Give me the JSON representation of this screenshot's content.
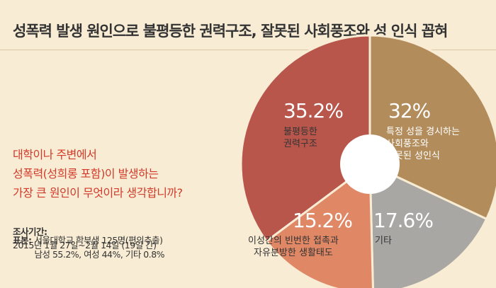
{
  "chart_data": {
    "type": "pie",
    "title": "성폭력 발생 원인으로 불평등한 권력구조, 잘못된 사회풍조와 성 인식 꼽혀",
    "question": "대학이나 주변에서\n성폭력(성희롱 포함)이 발생하는\n가장 큰 원인이 무엇이라 생각합니까?",
    "survey_period_label": "조사기간:",
    "survey_period": "2015년 1월 27일~2월 14일 (19일 간)",
    "sample_label": "표본:",
    "sample": "서울대학교 학부생 125명(편의추출)\n남성 55.2%, 여성 44%, 기타 0.8%",
    "categories": [
      "특정 성을 경시하는\n사회풍조와\n잘못된 성인식",
      "기타",
      "이성간의 빈번한 접촉과\n자유분방한 생활태도",
      "불평등한\n권력구조"
    ],
    "values": [
      32,
      17.6,
      15.2,
      35.2
    ],
    "value_labels": [
      "32%",
      "17.6%",
      "15.2%",
      "35.2%"
    ],
    "colors": [
      "#b38c5c",
      "#a9a7a3",
      "#e08866",
      "#b8564b"
    ]
  }
}
